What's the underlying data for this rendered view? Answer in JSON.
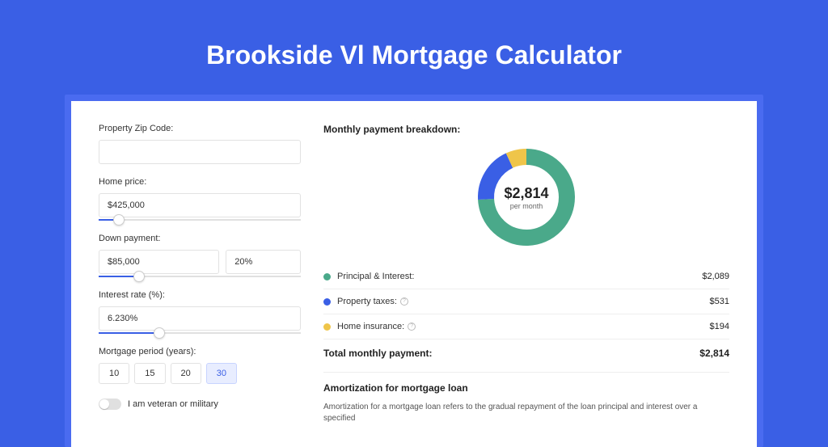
{
  "title": "Brookside Vl Mortgage Calculator",
  "colors": {
    "page_bg": "#3a5fe5",
    "card_wrap_bg": "#4a6bf0",
    "card_bg": "#ffffff",
    "accent": "#3a5fe5"
  },
  "form": {
    "zip_label": "Property Zip Code:",
    "zip_value": "",
    "home_price_label": "Home price:",
    "home_price_value": "$425,000",
    "home_price_slider_pct": 10,
    "down_payment_label": "Down payment:",
    "down_payment_value": "$85,000",
    "down_payment_pct_value": "20%",
    "down_payment_slider_pct": 20,
    "interest_label": "Interest rate (%):",
    "interest_value": "6.230%",
    "interest_slider_pct": 30,
    "period_label": "Mortgage period (years):",
    "periods": [
      {
        "label": "10",
        "active": false
      },
      {
        "label": "15",
        "active": false
      },
      {
        "label": "20",
        "active": false
      },
      {
        "label": "30",
        "active": true
      }
    ],
    "veteran_label": "I am veteran or military",
    "veteran_on": false
  },
  "breakdown": {
    "title": "Monthly payment breakdown:",
    "center_value": "$2,814",
    "center_sub": "per month",
    "donut": {
      "slices": [
        {
          "key": "pi",
          "color": "#4aa98a",
          "fraction": 0.742
        },
        {
          "key": "tax",
          "color": "#3a5fe5",
          "fraction": 0.189
        },
        {
          "key": "ins",
          "color": "#efc54a",
          "fraction": 0.069
        }
      ],
      "stroke_width": 20,
      "radius": 50
    },
    "rows": [
      {
        "color": "#4aa98a",
        "label": "Principal & Interest:",
        "info": false,
        "value": "$2,089"
      },
      {
        "color": "#3a5fe5",
        "label": "Property taxes:",
        "info": true,
        "value": "$531"
      },
      {
        "color": "#efc54a",
        "label": "Home insurance:",
        "info": true,
        "value": "$194"
      }
    ],
    "total_label": "Total monthly payment:",
    "total_value": "$2,814"
  },
  "amort": {
    "title": "Amortization for mortgage loan",
    "text": "Amortization for a mortgage loan refers to the gradual repayment of the loan principal and interest over a specified"
  }
}
